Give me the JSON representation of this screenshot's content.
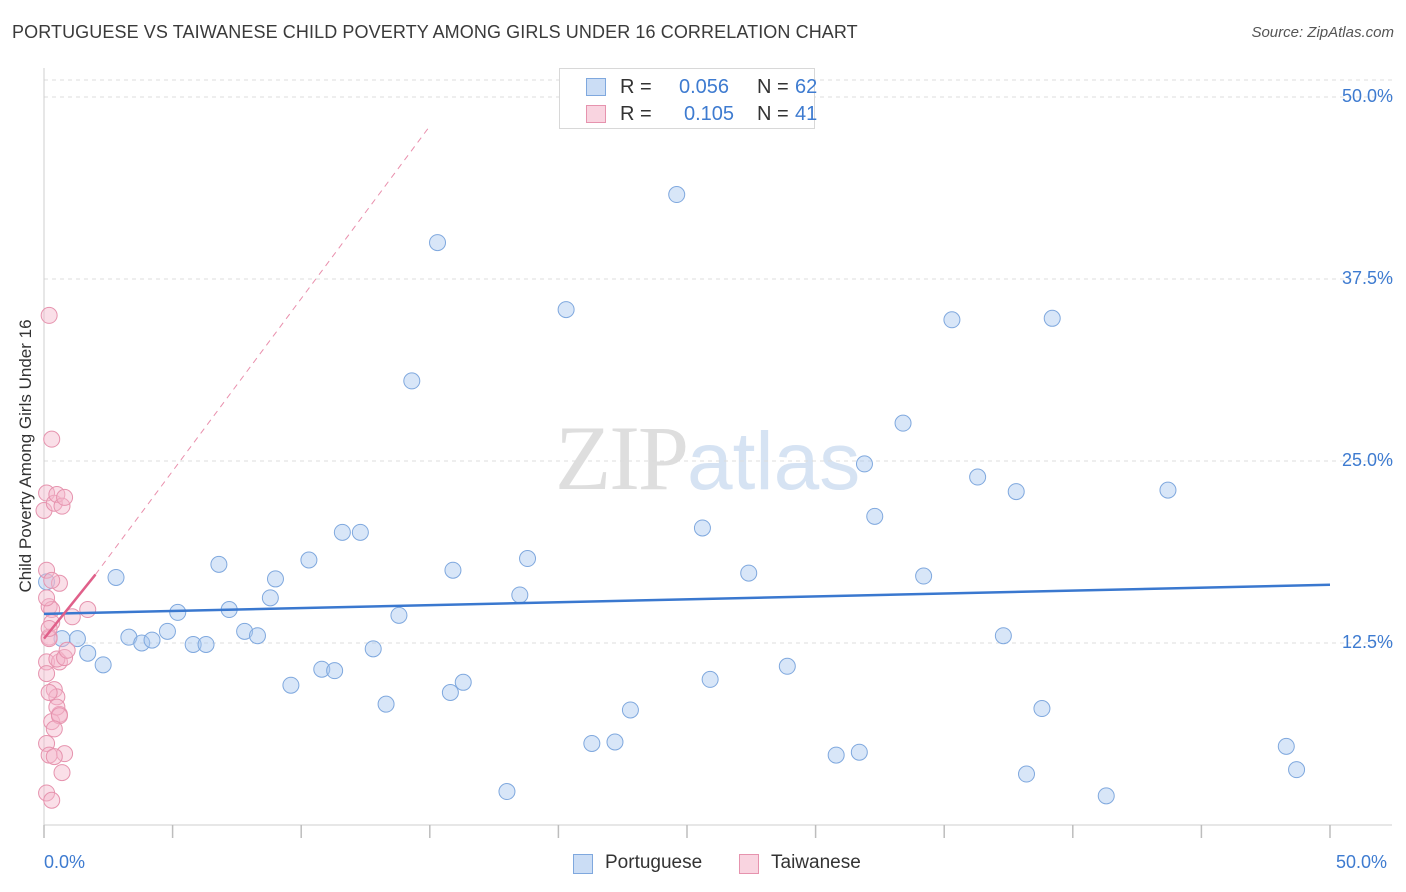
{
  "header": {
    "title": "PORTUGUESE VS TAIWANESE CHILD POVERTY AMONG GIRLS UNDER 16 CORRELATION CHART",
    "source": "Source: ZipAtlas.com"
  },
  "watermark": {
    "zip": "ZIP",
    "atlas": "atlas"
  },
  "stats_box": {
    "rows": [
      {
        "swatch_color": "#a9c7ef",
        "r_label": "R =",
        "r_value": "0.056",
        "n_label": "N =",
        "n_value": "62"
      },
      {
        "swatch_color": "#f5b8cb",
        "r_label": "R =",
        "r_value": "0.105",
        "n_label": "N =",
        "n_value": "41"
      }
    ]
  },
  "legend": {
    "items": [
      "Portuguese",
      "Taiwanese"
    ]
  },
  "colors": {
    "portuguese_fill": "rgba(169,199,239,0.45)",
    "portuguese_stroke": "#7fa8de",
    "portuguese_line": "#3a78cf",
    "taiwanese_fill": "rgba(245,184,203,0.45)",
    "taiwanese_stroke": "#e693ae",
    "taiwanese_line": "#e0608a",
    "value_text": "#3e7bd0",
    "grid": "#dcdcdc"
  },
  "chart_data": {
    "type": "scatter",
    "ylabel": "Child Poverty Among Girls Under 16",
    "xlim": [
      0,
      50
    ],
    "ylim": [
      0,
      50
    ],
    "x_tick_labels": [
      "0.0%",
      "50.0%"
    ],
    "y_tick_labels": [
      "50.0%",
      "37.5%",
      "25.0%",
      "12.5%"
    ],
    "y_ticks": [
      50,
      37.5,
      25,
      12.5
    ],
    "grid": true,
    "legend_placement": "bottom",
    "series": [
      {
        "name": "Portuguese",
        "points": [
          [
            0.1,
            16.7
          ],
          [
            0.7,
            12.8
          ],
          [
            1.3,
            12.8
          ],
          [
            1.7,
            11.8
          ],
          [
            2.3,
            11.0
          ],
          [
            2.8,
            17.0
          ],
          [
            3.3,
            12.9
          ],
          [
            3.8,
            12.5
          ],
          [
            4.2,
            12.7
          ],
          [
            4.8,
            13.3
          ],
          [
            5.2,
            14.6
          ],
          [
            5.8,
            12.4
          ],
          [
            6.3,
            12.4
          ],
          [
            6.8,
            17.9
          ],
          [
            7.2,
            14.8
          ],
          [
            7.8,
            13.3
          ],
          [
            8.3,
            13.0
          ],
          [
            8.8,
            15.6
          ],
          [
            9.0,
            16.9
          ],
          [
            9.6,
            9.6
          ],
          [
            10.3,
            18.2
          ],
          [
            10.8,
            10.7
          ],
          [
            11.3,
            10.6
          ],
          [
            11.6,
            20.1
          ],
          [
            12.3,
            20.1
          ],
          [
            12.8,
            12.1
          ],
          [
            13.3,
            8.3
          ],
          [
            13.8,
            14.4
          ],
          [
            14.3,
            30.5
          ],
          [
            15.3,
            40.0
          ],
          [
            15.8,
            9.1
          ],
          [
            15.9,
            17.5
          ],
          [
            16.3,
            9.8
          ],
          [
            18.0,
            2.3
          ],
          [
            18.5,
            15.8
          ],
          [
            18.8,
            18.3
          ],
          [
            20.3,
            35.4
          ],
          [
            21.3,
            5.6
          ],
          [
            22.2,
            5.7
          ],
          [
            22.8,
            7.9
          ],
          [
            24.6,
            43.3
          ],
          [
            25.6,
            20.4
          ],
          [
            25.9,
            10.0
          ],
          [
            27.4,
            17.3
          ],
          [
            28.9,
            10.9
          ],
          [
            30.8,
            4.8
          ],
          [
            31.7,
            5.0
          ],
          [
            31.9,
            24.8
          ],
          [
            32.3,
            21.2
          ],
          [
            33.4,
            27.6
          ],
          [
            34.2,
            17.1
          ],
          [
            35.3,
            34.7
          ],
          [
            36.3,
            23.9
          ],
          [
            37.3,
            13.0
          ],
          [
            37.8,
            22.9
          ],
          [
            38.2,
            3.5
          ],
          [
            38.8,
            8.0
          ],
          [
            39.2,
            34.8
          ],
          [
            41.3,
            2.0
          ],
          [
            43.7,
            23.0
          ],
          [
            48.3,
            5.4
          ],
          [
            48.7,
            3.8
          ]
        ]
      },
      {
        "name": "Taiwanese",
        "points": [
          [
            0.1,
            17.5
          ],
          [
            0.2,
            12.9
          ],
          [
            0.1,
            11.2
          ],
          [
            0.3,
            7.1
          ],
          [
            0.1,
            5.6
          ],
          [
            0.2,
            4.8
          ],
          [
            0.1,
            2.2
          ],
          [
            0.3,
            1.7
          ],
          [
            0.0,
            21.6
          ],
          [
            0.1,
            22.8
          ],
          [
            0.4,
            22.1
          ],
          [
            0.3,
            26.5
          ],
          [
            0.2,
            35.0
          ],
          [
            0.5,
            22.7
          ],
          [
            0.7,
            21.9
          ],
          [
            0.8,
            22.5
          ],
          [
            0.6,
            11.2
          ],
          [
            0.4,
            9.3
          ],
          [
            0.5,
            8.8
          ],
          [
            0.6,
            7.6
          ],
          [
            0.2,
            15.0
          ],
          [
            0.3,
            14.8
          ],
          [
            0.1,
            15.6
          ],
          [
            1.1,
            14.3
          ],
          [
            1.7,
            14.8
          ],
          [
            0.3,
            13.9
          ],
          [
            0.2,
            12.8
          ],
          [
            0.5,
            11.4
          ],
          [
            0.8,
            11.5
          ],
          [
            0.1,
            10.4
          ],
          [
            0.2,
            9.1
          ],
          [
            0.5,
            8.1
          ],
          [
            0.6,
            7.5
          ],
          [
            0.4,
            6.6
          ],
          [
            0.8,
            4.9
          ],
          [
            0.4,
            4.7
          ],
          [
            0.7,
            3.6
          ],
          [
            0.9,
            12.0
          ],
          [
            0.2,
            13.5
          ],
          [
            0.6,
            16.6
          ],
          [
            0.3,
            16.8
          ]
        ]
      }
    ],
    "trendlines": [
      {
        "series": "Portuguese",
        "style": "solid",
        "from": [
          0,
          14.5
        ],
        "to": [
          50,
          16.5
        ]
      },
      {
        "series": "Taiwanese",
        "style": "solid",
        "from": [
          0,
          12.8
        ],
        "to": [
          2.0,
          17.2
        ]
      },
      {
        "series": "Taiwanese",
        "style": "dashed",
        "from": [
          2.0,
          17.2
        ],
        "to": [
          15.0,
          48.0
        ]
      }
    ]
  }
}
